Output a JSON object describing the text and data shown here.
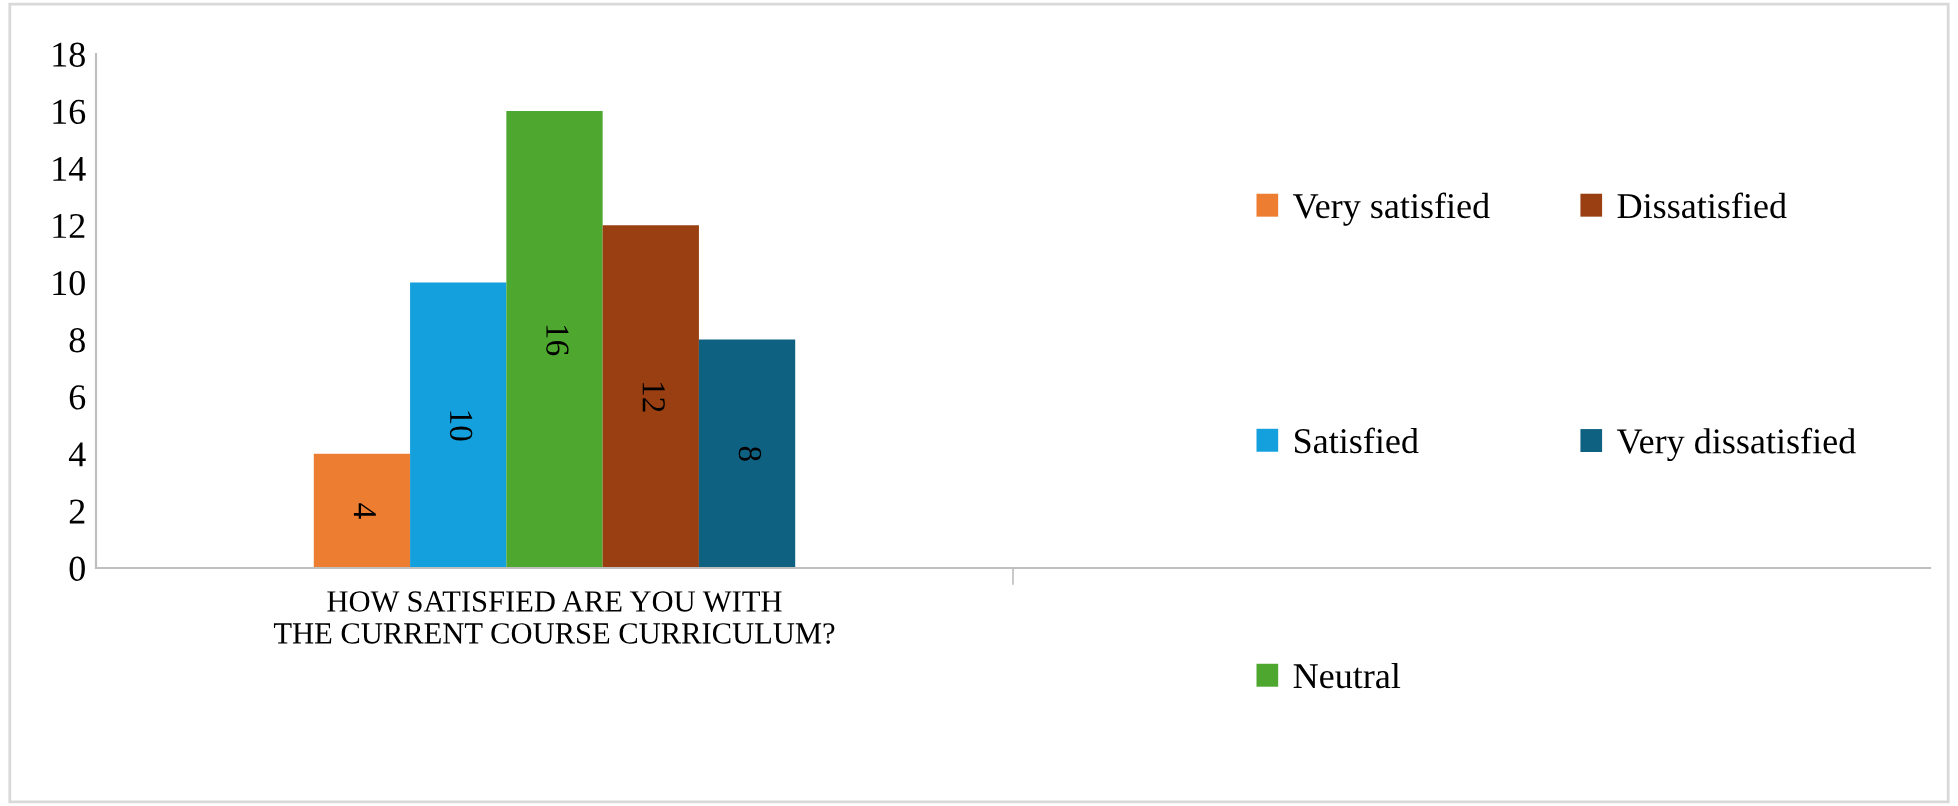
{
  "chart_data": {
    "type": "bar",
    "categories": [
      "HOW SATISFIED ARE YOU WITH THE CURRENT COURSE CURRICULUM?",
      null
    ],
    "series": [
      {
        "name": "Very satisfied",
        "color": "#ed7d31",
        "values": [
          4,
          null
        ]
      },
      {
        "name": "Satisfied",
        "color": "#14a0dc",
        "values": [
          10,
          null
        ]
      },
      {
        "name": "Neutral",
        "color": "#4ea72e",
        "values": [
          16,
          null
        ]
      },
      {
        "name": "Dissatisfied",
        "color": "#9a3f12",
        "values": [
          12,
          null
        ]
      },
      {
        "name": "Very dissatisfied",
        "color": "#0f6182",
        "values": [
          8,
          null
        ]
      }
    ],
    "ylim": [
      0,
      18
    ],
    "yticks": [
      0,
      2,
      4,
      6,
      8,
      10,
      12,
      14,
      16,
      18
    ],
    "data_labels": true,
    "grid": false,
    "legend": "right"
  }
}
